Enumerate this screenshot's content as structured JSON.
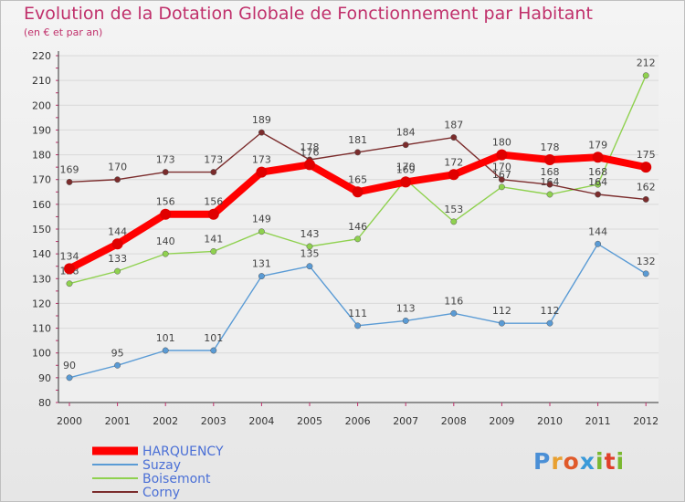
{
  "header": {
    "title": "Evolution de la Dotation Globale de Fonctionnement par Habitant",
    "subtitle": "(en € et par an)"
  },
  "logo": {
    "text": "Proxiti",
    "letter_colors": [
      "#4a8fd6",
      "#e8a030",
      "#e05a2a",
      "#3a9ad9",
      "#7ab830",
      "#e0402a",
      "#7ab830"
    ]
  },
  "colors": {
    "title": "#c0306b",
    "legend_text": "#4a6fd6",
    "grid": "#d9d9d9"
  },
  "chart_data": {
    "type": "line",
    "title": "Evolution de la Dotation Globale de Fonctionnement par Habitant",
    "subtitle": "(en € et par an)",
    "xlabel": "",
    "ylabel": "",
    "x": [
      "2000",
      "2001",
      "2002",
      "2003",
      "2004",
      "2005",
      "2006",
      "2007",
      "2008",
      "2009",
      "2010",
      "2011",
      "2012"
    ],
    "ylim": [
      80,
      220
    ],
    "yticks": [
      80,
      90,
      100,
      110,
      120,
      130,
      140,
      150,
      160,
      170,
      180,
      190,
      200,
      210,
      220
    ],
    "grid": "horizontal",
    "legend_position": "bottom-left",
    "series": [
      {
        "name": "HARQUENCY",
        "color": "#ff0000",
        "emphasis": true,
        "values": [
          134,
          144,
          156,
          156,
          173,
          176,
          165,
          169,
          172,
          180,
          178,
          179,
          175
        ]
      },
      {
        "name": "Suzay",
        "color": "#5a9bd5",
        "emphasis": false,
        "values": [
          90,
          95,
          101,
          101,
          131,
          135,
          111,
          113,
          116,
          112,
          112,
          144,
          132
        ]
      },
      {
        "name": "Boisemont",
        "color": "#8fd14f",
        "emphasis": false,
        "values": [
          128,
          133,
          140,
          141,
          149,
          143,
          146,
          170,
          153,
          167,
          164,
          168,
          212
        ]
      },
      {
        "name": "Corny",
        "color": "#7b2c2c",
        "emphasis": false,
        "values": [
          169,
          170,
          173,
          173,
          189,
          178,
          181,
          184,
          187,
          170,
          168,
          164,
          162
        ]
      }
    ]
  }
}
